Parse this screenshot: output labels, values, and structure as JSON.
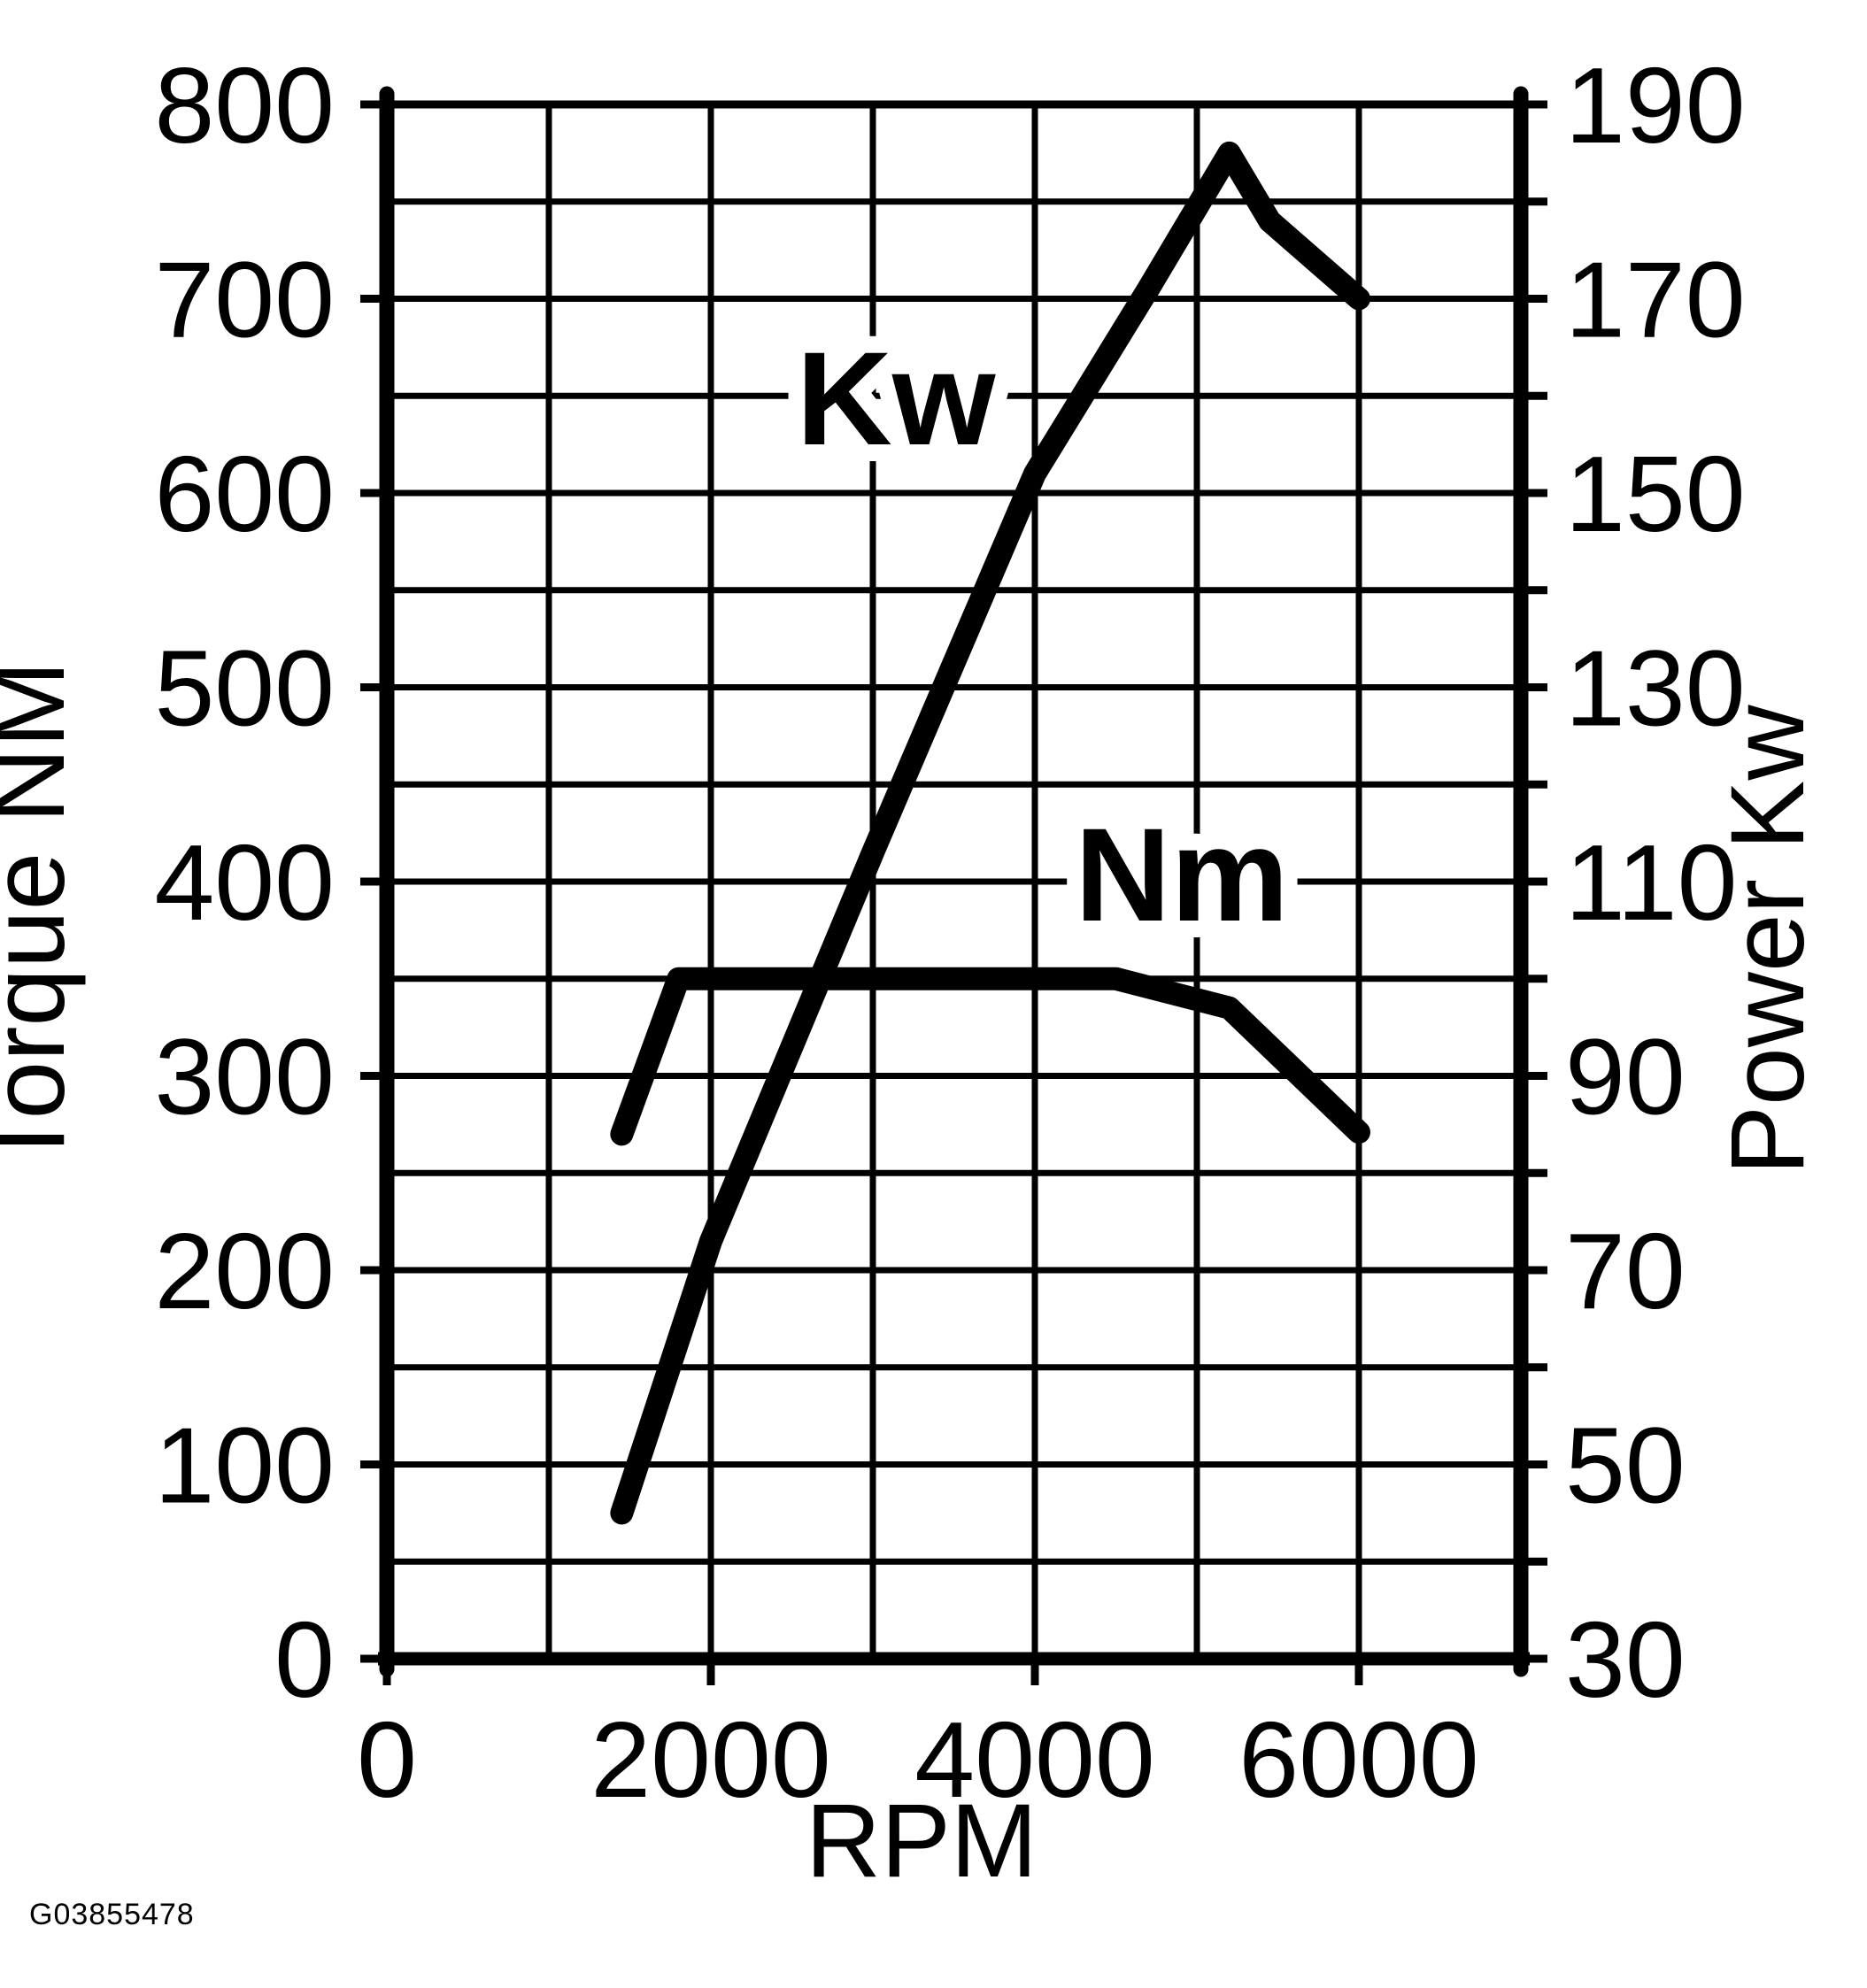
{
  "page": {
    "background": "#ffffff",
    "ink": "#000000"
  },
  "footer": {
    "figure_id": "G03855478"
  },
  "chart_data": {
    "type": "line",
    "title": "",
    "xlabel": "RPM",
    "ylabel_left": "Torque NM",
    "ylabel_right": "Power Kw",
    "grid": true,
    "x_axis": {
      "min": 0,
      "max": 7000,
      "grid_step": 1000,
      "ticks": [
        0,
        2000,
        4000,
        6000
      ]
    },
    "y_left_axis": {
      "min": 0,
      "max": 800,
      "grid_step": 50,
      "ticks": [
        800,
        700,
        600,
        500,
        400,
        300,
        200,
        100,
        0
      ]
    },
    "y_right_axis": {
      "min": 30,
      "max": 190,
      "tick_step": 10,
      "ticks": [
        190,
        170,
        150,
        130,
        110,
        90,
        70,
        50,
        30
      ]
    },
    "series": [
      {
        "name": "power",
        "label": "Kw",
        "axis": "right",
        "units": "Kw",
        "points": [
          [
            1450,
            45
          ],
          [
            2000,
            73
          ],
          [
            3000,
            113
          ],
          [
            4000,
            152
          ],
          [
            4700,
            171
          ],
          [
            5200,
            185
          ],
          [
            5450,
            178
          ],
          [
            6000,
            170
          ]
        ]
      },
      {
        "name": "torque",
        "label": "Nm",
        "axis": "left",
        "units": "Nm",
        "points": [
          [
            1450,
            270
          ],
          [
            1800,
            350
          ],
          [
            4500,
            350
          ],
          [
            5200,
            335
          ],
          [
            6000,
            271
          ]
        ]
      }
    ]
  }
}
